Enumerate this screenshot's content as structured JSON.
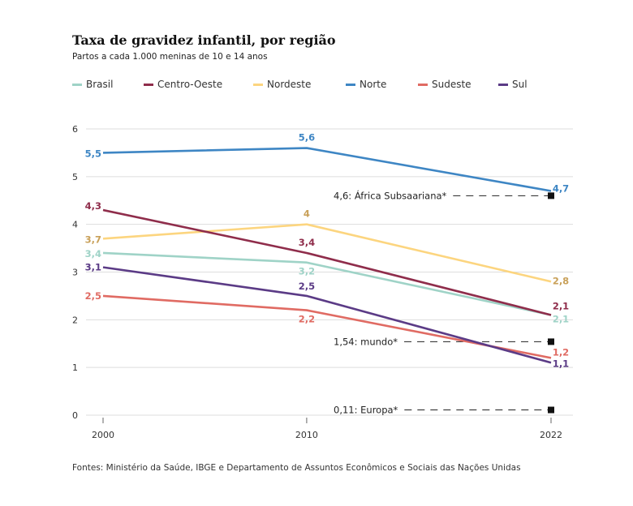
{
  "title": "Taxa de gravidez infantil, por região",
  "subtitle": "Partos a cada 1.000 meninas de 10 e 14 anos",
  "source": "Fontes: Ministério da Saúde, IBGE e Departamento de Assuntos Econômicos e Sociais das Nações Unidas",
  "chart_data": {
    "type": "line",
    "title": "Taxa de gravidez infantil, por região",
    "subtitle": "Partos a cada 1.000 meninas de 10 e 14 anos",
    "x": [
      "2000",
      "2010",
      "2022"
    ],
    "x_values": [
      2000,
      2010,
      2022
    ],
    "ylim": [
      0,
      6
    ],
    "yticks": [
      "0",
      "1",
      "2",
      "3",
      "4",
      "5",
      "6"
    ],
    "grid": true,
    "legend_position": "top",
    "series": [
      {
        "name": "Brasil",
        "color": "#9fd3c7",
        "values": [
          3.4,
          3.2,
          2.1
        ],
        "labels": [
          "3,4",
          "3,2",
          "2,1"
        ]
      },
      {
        "name": "Centro-Oeste",
        "color": "#8f2d4b",
        "values": [
          4.3,
          3.4,
          2.1
        ],
        "labels": [
          "4,3",
          "3,4",
          "2,1"
        ]
      },
      {
        "name": "Nordeste",
        "color": "#fcd57f",
        "values": [
          3.7,
          4.0,
          2.8
        ],
        "labels": [
          "3,7",
          "4",
          "2,8"
        ],
        "label_color": "#c9a15a"
      },
      {
        "name": "Norte",
        "color": "#3e86c4",
        "values": [
          5.5,
          5.6,
          4.7
        ],
        "labels": [
          "5,5",
          "5,6",
          "4,7"
        ]
      },
      {
        "name": "Sudeste",
        "color": "#e06b63",
        "values": [
          2.5,
          2.2,
          1.2
        ],
        "labels": [
          "2,5",
          "2,2",
          "1,2"
        ]
      },
      {
        "name": "Sul",
        "color": "#5b3b86",
        "values": [
          3.1,
          2.5,
          1.1
        ],
        "labels": [
          "3,1",
          "2,5",
          "1,1"
        ]
      }
    ],
    "references": [
      {
        "label": "4,6: África Subsaariana*",
        "value": 4.6
      },
      {
        "label": "1,54: mundo*",
        "value": 1.54
      },
      {
        "label": "0,11: Europa*",
        "value": 0.11
      }
    ]
  }
}
